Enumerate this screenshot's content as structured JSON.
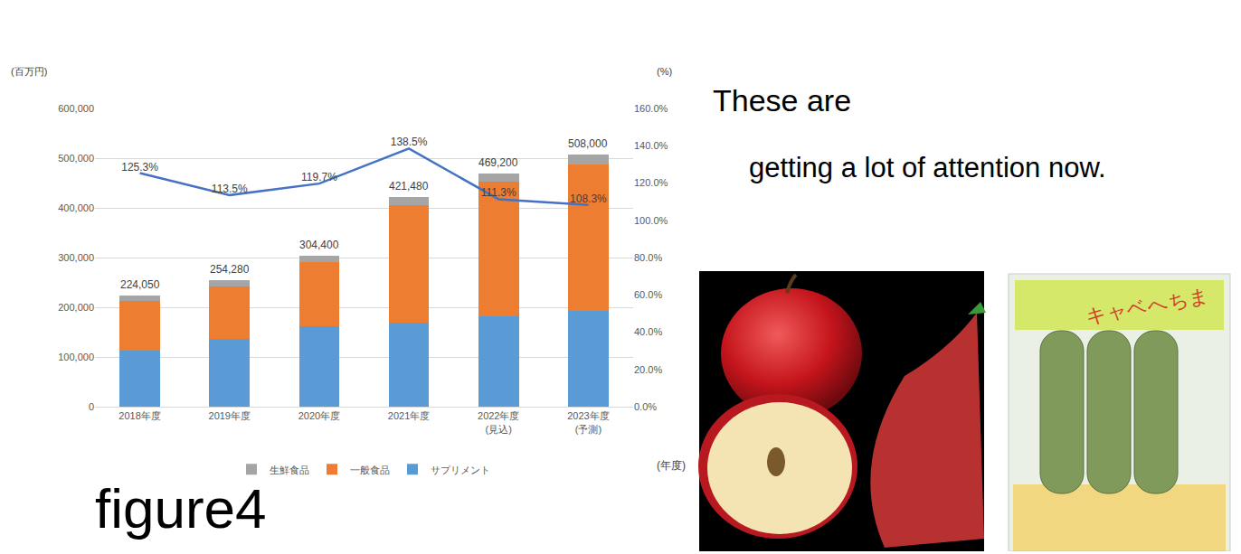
{
  "chart_data": {
    "type": "bar",
    "stacked": true,
    "grid": true,
    "legend": "bottom",
    "y_label": "(百万円)",
    "y2_label": "(%)",
    "x_label": "(年度)",
    "categories": [
      "2018年度",
      "2019年度",
      "2020年度",
      "2021年度",
      "2022年度\n(見込)",
      "2023年度\n(予測)"
    ],
    "series": [
      {
        "name": "サプリメント",
        "type": "bar",
        "color": "#5b9bd5",
        "values": [
          112000,
          136000,
          161000,
          170000,
          181000,
          193000
        ]
      },
      {
        "name": "一般食品",
        "type": "bar",
        "color": "#ed7d31",
        "values": [
          101000,
          106000,
          130000,
          235000,
          272000,
          295000
        ]
      },
      {
        "name": "生鮮食品",
        "type": "bar",
        "color": "#a5a5a5",
        "values": [
          11050,
          12280,
          13400,
          16480,
          16200,
          20000
        ]
      },
      {
        "type": "line",
        "axis": "y2",
        "color": "#4472c4",
        "data_labels": true,
        "values": [
          125.3,
          113.5,
          119.7,
          138.5,
          111.3,
          108.3
        ],
        "value_labels": [
          "125.3%",
          "113.5%",
          "119.7%",
          "138.5%",
          "111.3%",
          "108.3%"
        ]
      }
    ],
    "totals": {
      "values": [
        224050,
        254280,
        304400,
        421480,
        469200,
        508000
      ],
      "value_labels": [
        "224,050",
        "254,280",
        "304,400",
        "421,480",
        "469,200",
        "508,000"
      ]
    },
    "ylim": [
      0,
      600000
    ],
    "yticks": [
      0,
      {
        "value": 100000,
        "label": "100,000"
      },
      {
        "value": 200000,
        "label": "200,000"
      },
      {
        "value": 300000,
        "label": "300,000"
      },
      {
        "value": 400000,
        "label": "400,000"
      },
      {
        "value": 500000,
        "label": "500,000"
      },
      {
        "value": 600000,
        "label": "600,000"
      }
    ],
    "y2lim": [
      0,
      160
    ],
    "y2ticks": [
      {
        "value": 0,
        "label": "0.0%"
      },
      {
        "value": 20,
        "label": "20.0%"
      },
      {
        "value": 40,
        "label": "40.0%"
      },
      {
        "value": 60,
        "label": "60.0%"
      },
      {
        "value": 80,
        "label": "80.0%"
      },
      {
        "value": 100,
        "label": "100.0%"
      },
      {
        "value": 120,
        "label": "120.0%"
      },
      {
        "value": 140,
        "label": "140.0%"
      },
      {
        "value": 160,
        "label": "160.0%"
      }
    ]
  },
  "caption": "figure4",
  "slide_text": [
    "These are",
    "getting a lot of attention now."
  ],
  "images": [
    {
      "label": "キャベへちま"
    }
  ]
}
